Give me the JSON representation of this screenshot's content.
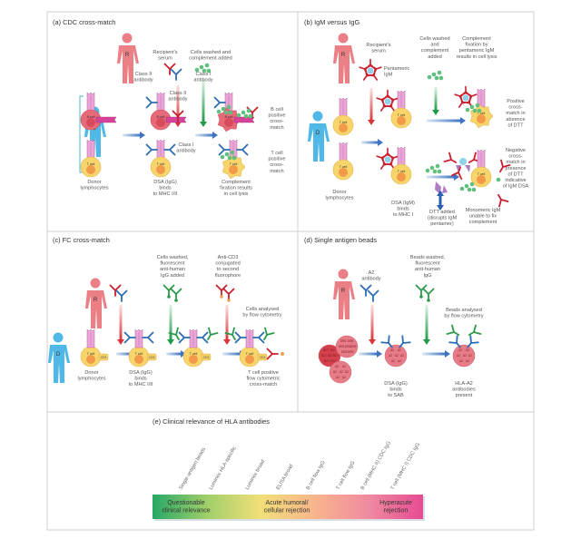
{
  "colors": {
    "recipient": "#ea7f86",
    "donor": "#4fb8e6",
    "tcell": "#f7d56b",
    "bcell": "#e66a78",
    "mhc": "#e9a6d6",
    "class2_ab": "#c8202e",
    "class1_ab": "#2c6db3",
    "complement": "#5fbf7d",
    "fluor_ab": "#2c9a4a",
    "anticd3": "#c8202e"
  },
  "panel_a": {
    "title": "(a)  CDC cross-match",
    "recipient_letter": "R",
    "donor_letter": "D",
    "serum": "Recipient's\nserum",
    "class2_antibody": "Class II\nantibody",
    "class1_antibody": "Class I\nantibody",
    "wash": "Cells washed and\ncomplement added",
    "class2_antibody_bound": "Class II\nantibody",
    "class1_antibody_bound": "Class I\nantibody",
    "bcell_label": "B cell",
    "tcell_label": "T cell",
    "mhc2": "MHC II",
    "mhc1": "MHC I",
    "donor_lymphocytes": "Donor\nlymphocytes",
    "dsa_binds": "DSA (IgG)\nbinds\nto MHC I/II",
    "complement_result": "Complement\nfixation results\nin cell lysis",
    "bcell_positive": "B cell\npositive\ncross-\nmatch",
    "tcell_positive": "T cell\npositive\ncross-\nmatch"
  },
  "panel_b": {
    "title": "(b)  IgM versus IgG",
    "recipient_letter": "R",
    "donor_letter": "D",
    "serum": "Recipient's\nserum",
    "pentameric": "Pentameric\nIgM",
    "wash": "Cells washed\nand\ncomplement\nadded",
    "fixation": "Complement\nfixation by\npentameric IgM\nresults in cell lysis",
    "donor_lymphocytes": "Donor\nlymphocytes",
    "dsa_binds": "DSA (IgM)\nbinds\nto MHC I",
    "dtt_added": "DTT added\n(disrupts IgM\npentamer)",
    "monomeric": "Monomeric IgM\nunable to fix\ncomplement",
    "positive": "Positive\ncross-\nmatch in\nabsence\nof DTT",
    "negative": "Negative\ncross-\nmatch in\npresence\nof DTT\nindicative\nof IgM DSA",
    "tcell_label": "T cell"
  },
  "panel_c": {
    "title": "(c)  FC cross-match",
    "recipient_letter": "R",
    "donor_letter": "D",
    "wash": "Cells washed,\nfluorescent\nanti-human\nIgG added",
    "anticd3": "Anti-CD3\nconjugated\nto second\nfluorophore",
    "analysed": "Cells analysed\nby flow cytometry",
    "donor_lymphocytes": "Donor\nlymphocytes",
    "dsa_binds": "DSA (IgG)\nbinds\nto MHC I/II",
    "result": "T cell positive\nflow cytometric\ncross-match",
    "tcell_label": "T cell",
    "cd3": "CD3"
  },
  "panel_d": {
    "title": "(d)  Single antigen beads",
    "recipient_letter": "R",
    "a2_antibody": "A2\nantibody",
    "wash": "Beads washed,\nfluorescent\nanti-human\nIgG",
    "analysed": "Beads analysed\nby flow cytometry",
    "dsa_binds": "DSA (IgG)\nbinds\nto SAB",
    "result": "HLA-A2\nantibodies\npresent",
    "bead_b27": "B27",
    "bead_dr5": "DR5",
    "bead_a2": "A2"
  },
  "panel_e": {
    "title": "(e)  Clinical relevance of HLA antibodies",
    "assays": [
      "Single-antigen beads",
      "Luminex HLA-specific",
      "Luminex broad",
      "ELISA broad",
      "B cell flow IgG",
      "T cell flow IgG",
      "B cell (MHC II) CDC IgG",
      "T cell (MHC I) CDC IgG"
    ],
    "zones": [
      {
        "label": "Questionable\nclinical relevance"
      },
      {
        "label": "Acute humoral/\ncellular rejection"
      },
      {
        "label": "Hyperacute\nrejection"
      }
    ],
    "gradient": [
      "#27a866",
      "#9fcf6a",
      "#f2df78",
      "#f7b58c",
      "#f08aa0",
      "#e64b93"
    ]
  }
}
